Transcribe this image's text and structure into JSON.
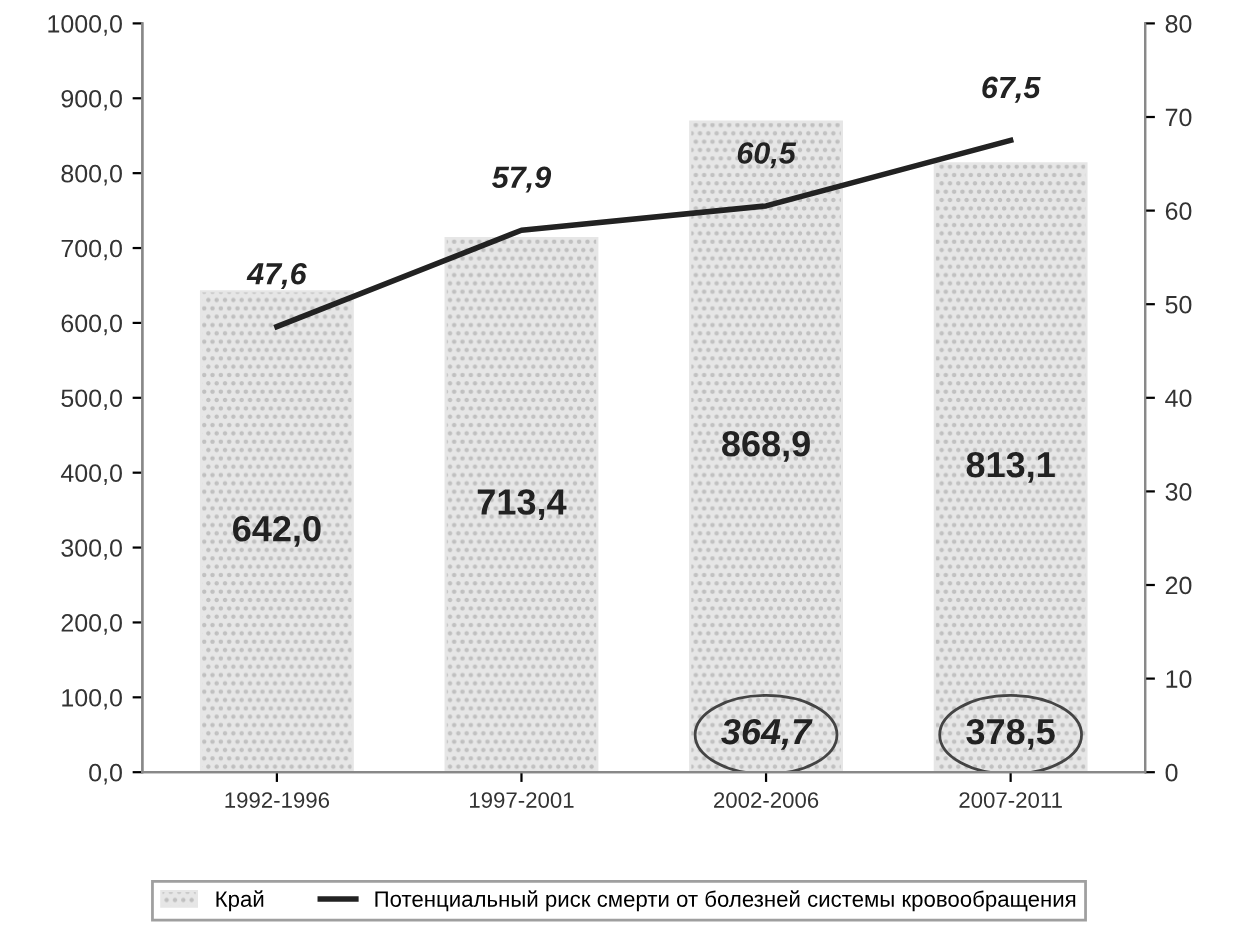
{
  "chart_data": {
    "type": "bar",
    "categories": [
      "1992-1996",
      "1997-2001",
      "2002-2006",
      "2007-2011"
    ],
    "series": [
      {
        "name": "Край",
        "color": "#e6e6e6",
        "values": [
          642.0,
          713.4,
          868.9,
          813.1
        ],
        "value_labels": [
          "642,0",
          "713,4",
          "868,9",
          "813,1"
        ]
      },
      {
        "name": "Потенциальный риск смерти от болезней системы кровообращения",
        "type": "line",
        "axis": "y2",
        "color": "#222222",
        "values": [
          47.6,
          57.9,
          60.5,
          67.5
        ],
        "value_labels": [
          "47,6",
          "57,9",
          "60,5",
          "67,5"
        ]
      }
    ],
    "ylim": [
      0,
      1000
    ],
    "yticks": [
      {
        "value": 0,
        "label": "0,0"
      },
      {
        "value": 100,
        "label": "100,0"
      },
      {
        "value": 200,
        "label": "200,0"
      },
      {
        "value": 300,
        "label": "300,0"
      },
      {
        "value": 400,
        "label": "400,0"
      },
      {
        "value": 500,
        "label": "500,0"
      },
      {
        "value": 600,
        "label": "600,0"
      },
      {
        "value": 700,
        "label": "700,0"
      },
      {
        "value": 800,
        "label": "800,0"
      },
      {
        "value": 900,
        "label": "900,0"
      },
      {
        "value": 1000,
        "label": "1000,0"
      }
    ],
    "y2lim": [
      0,
      80
    ],
    "y2ticks": [
      0,
      10,
      20,
      30,
      40,
      50,
      60,
      70,
      80
    ],
    "annotations": [
      "364,7",
      "378,5"
    ],
    "legend": "bottom",
    "grid": false,
    "marker": "none",
    "line_style": "solid"
  }
}
